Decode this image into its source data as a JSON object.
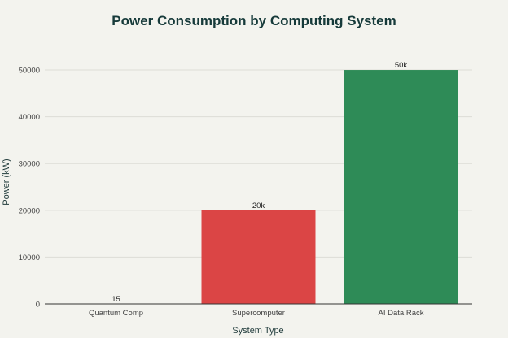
{
  "chart_data": {
    "type": "bar",
    "title": "Power Consumption by Computing System",
    "xlabel": "System Type",
    "ylabel": "Power (kW)",
    "categories": [
      "Quantum Comp",
      "Supercomputer",
      "AI Data Rack"
    ],
    "values": [
      15,
      20000,
      50000
    ],
    "data_labels": [
      "15",
      "20k",
      "50k"
    ],
    "colors": [
      "#1f3f3f",
      "#db4545",
      "#2e8b57"
    ],
    "ylim": [
      0,
      54000
    ],
    "yticks": [
      0,
      10000,
      20000,
      30000,
      40000,
      50000
    ],
    "grid": true,
    "legend": "none"
  }
}
